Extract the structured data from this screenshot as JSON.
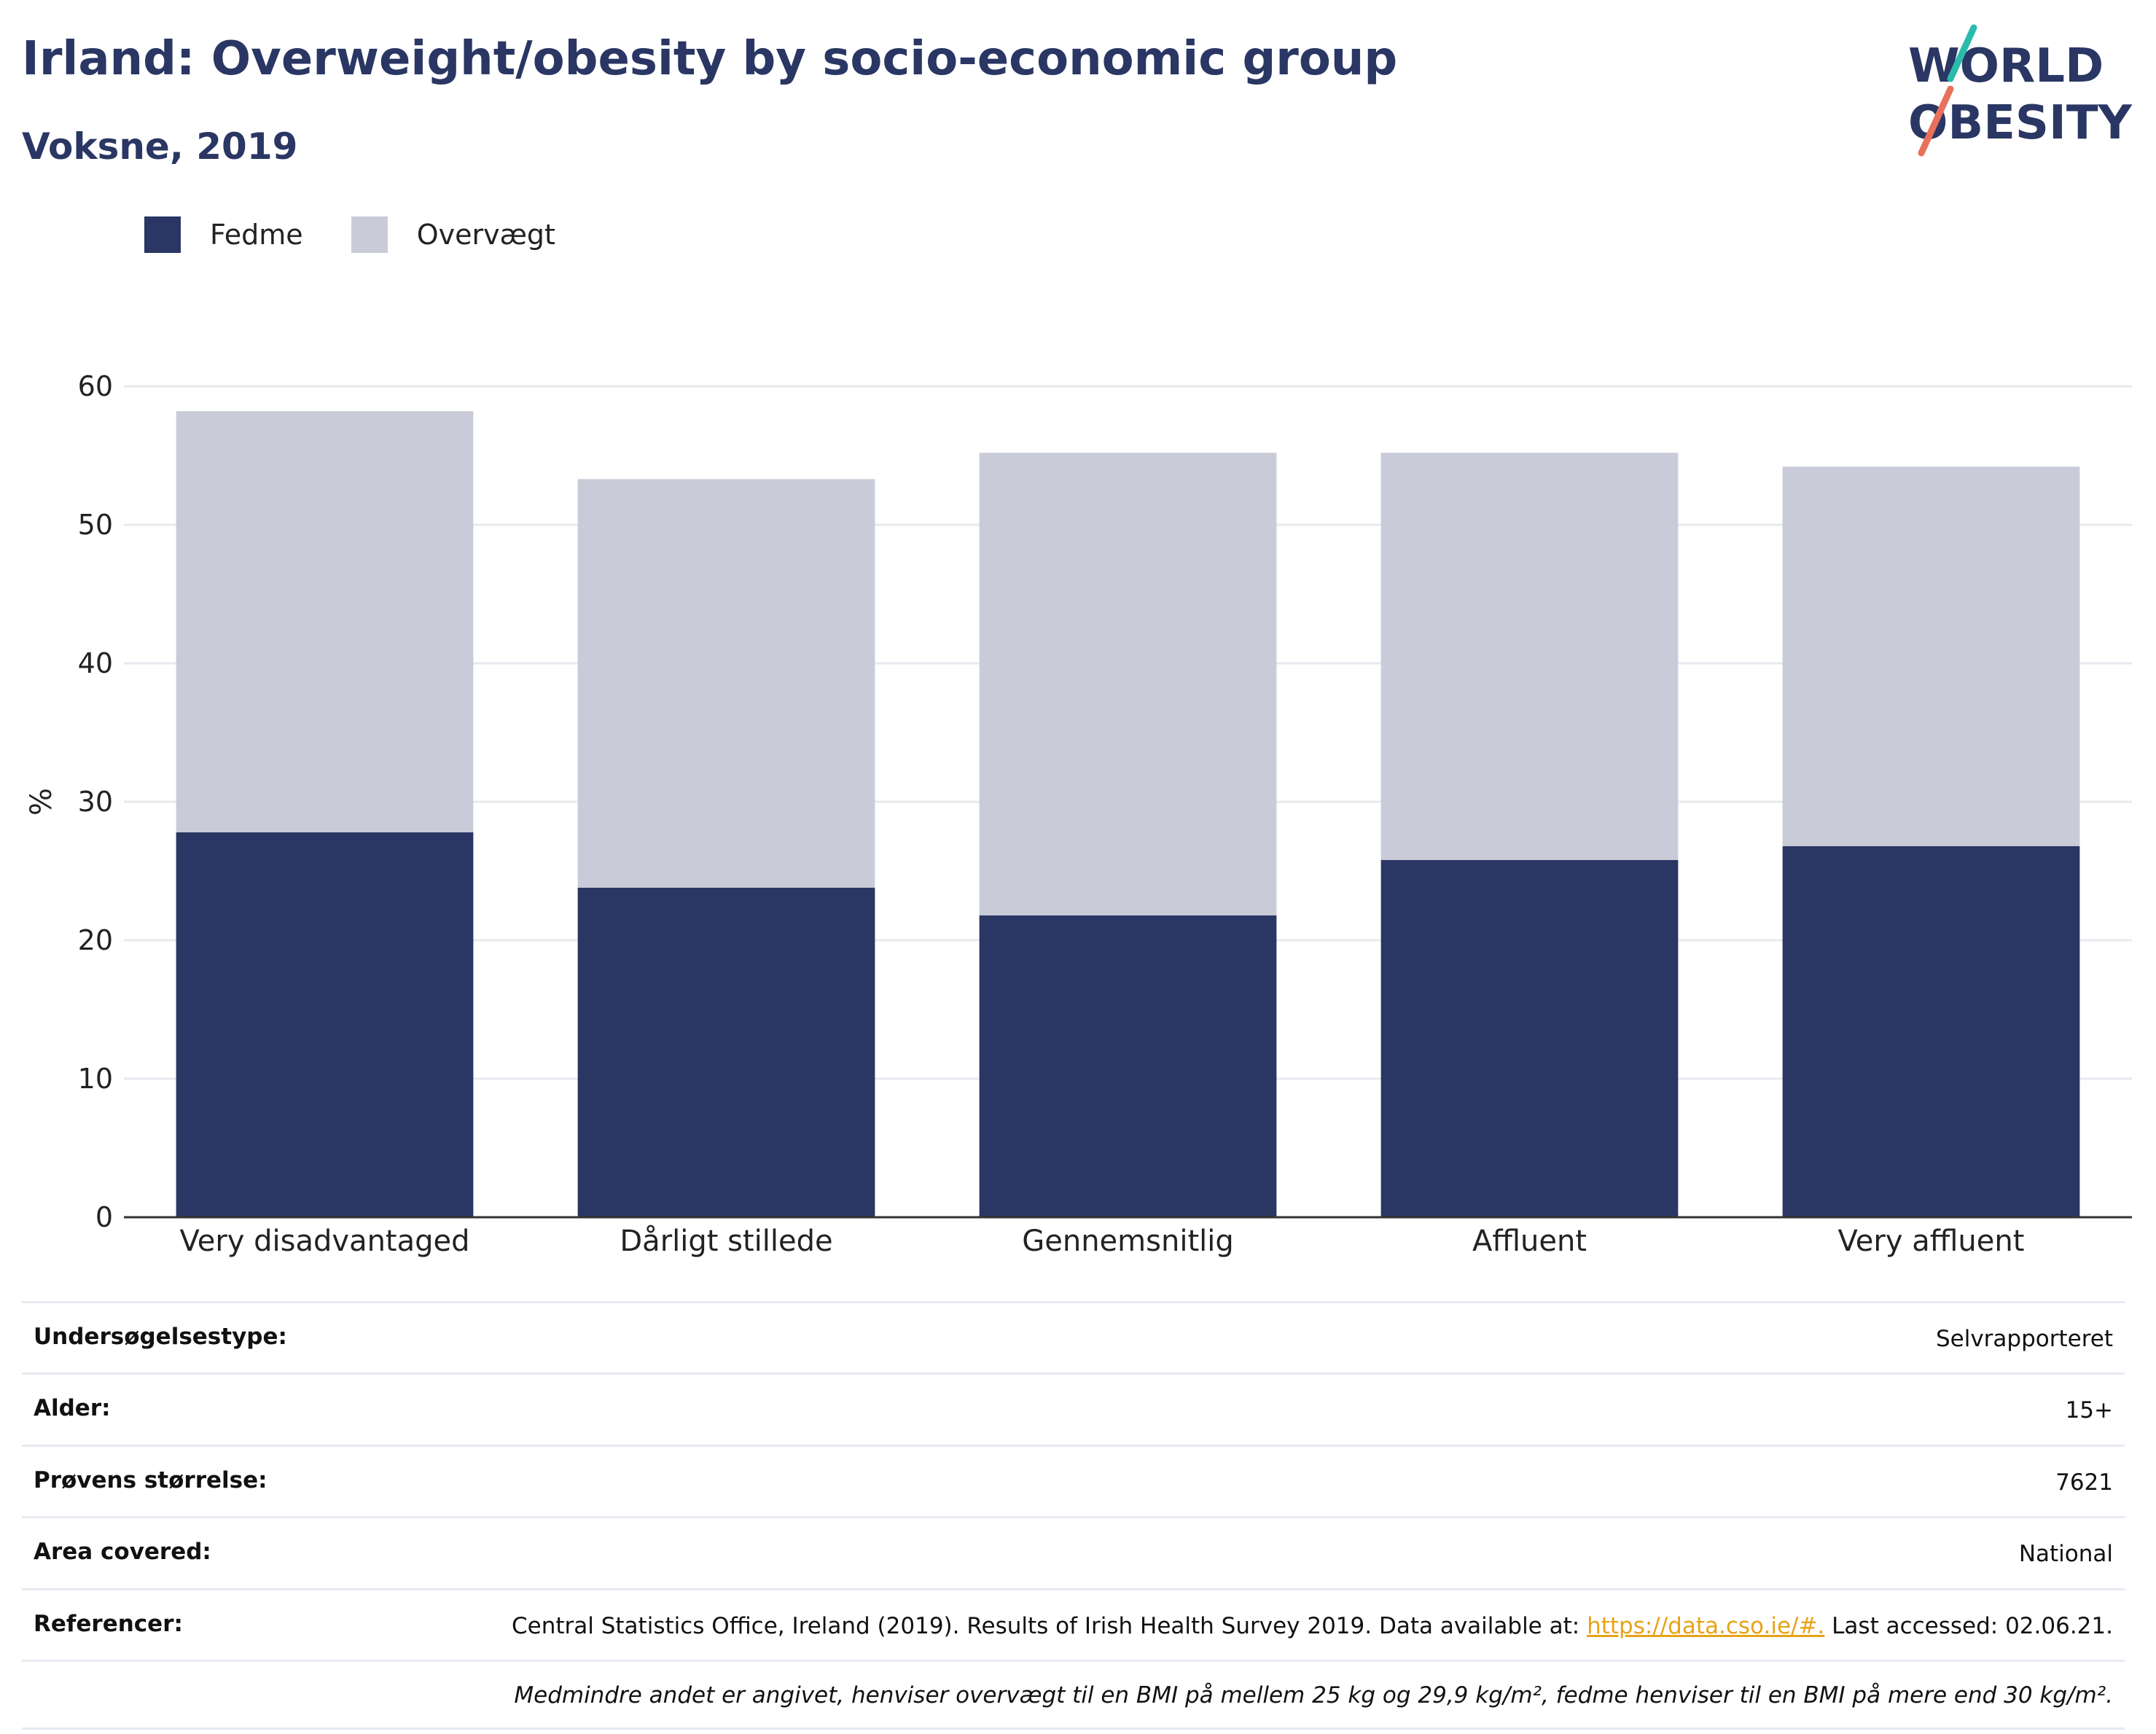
{
  "header": {
    "title": "Irland: Overweight/obesity by socio-economic group",
    "subtitle": "Voksne, 2019"
  },
  "logo": {
    "line1": "WORLD",
    "line2": "OBESITY",
    "accent_colors": [
      "#2bbbad",
      "#e8715c"
    ]
  },
  "colors": {
    "obesity": "#2a3663",
    "overweight": "#c9ccd8",
    "grid": "#e8e9ef",
    "axis": "#333333"
  },
  "chart_data": {
    "type": "bar",
    "stacked": true,
    "categories": [
      "Very disadvantaged",
      "Dårligt stillede",
      "Gennemsnitlig",
      "Affluent",
      "Very affluent"
    ],
    "series": [
      {
        "name": "Fedme",
        "color": "#2a3663",
        "values": [
          27.8,
          23.8,
          21.8,
          25.8,
          26.8
        ]
      },
      {
        "name": "Overvægt",
        "color": "#c9ccd8",
        "values": [
          30.4,
          29.5,
          33.4,
          29.4,
          27.4
        ]
      }
    ],
    "ylabel": "%",
    "ylim": [
      0,
      60
    ],
    "yticks": [
      0,
      10,
      20,
      30,
      40,
      50,
      60
    ],
    "grid": true,
    "legend_position": "top-left"
  },
  "info": {
    "rows": [
      {
        "key": "Undersøgelsestype:",
        "value": "Selvrapporteret"
      },
      {
        "key": "Alder:",
        "value": "15+"
      },
      {
        "key": "Prøvens størrelse:",
        "value": "7621"
      },
      {
        "key": "Area covered:",
        "value": "National"
      }
    ],
    "reference": {
      "key": "Referencer:",
      "text_before": "Central Statistics Office, Ireland (2019). Results of Irish Health Survey 2019. Data available at: ",
      "link": "https://data.cso.ie/#.",
      "text_after": " Last accessed: 02.06.21."
    },
    "note": "Medmindre andet er angivet, henviser overvægt til en BMI på mellem 25 kg og 29,9 kg/m², fedme henviser til en BMI på mere end 30 kg/m²."
  }
}
